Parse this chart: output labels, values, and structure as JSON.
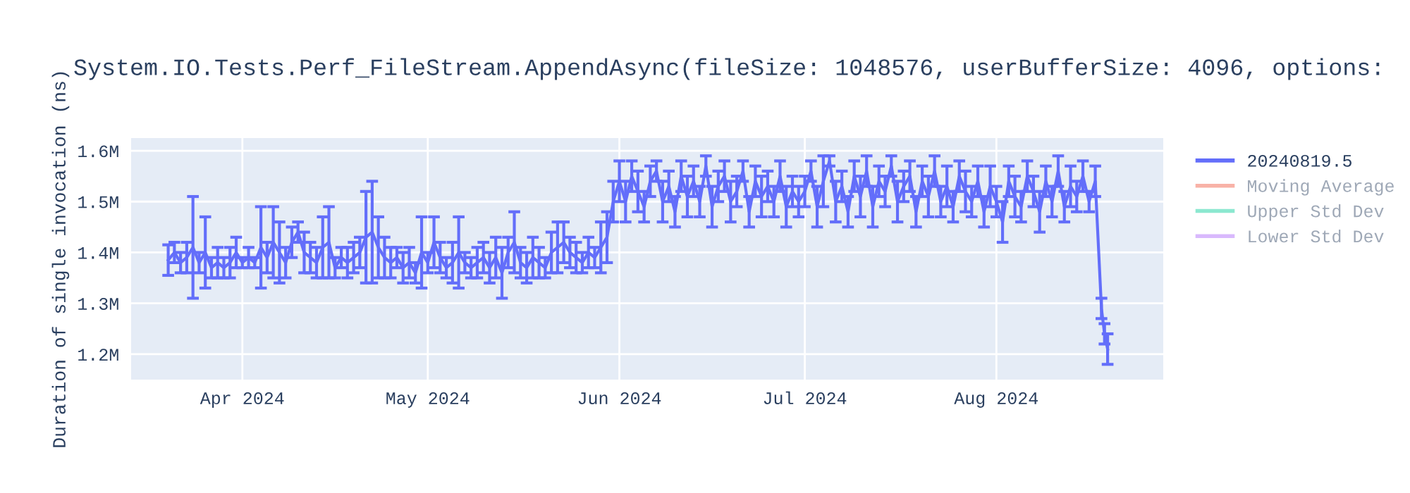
{
  "chart_data": {
    "type": "line",
    "title": "System.IO.Tests.Perf_FileStream.AppendAsync(fileSize: 1048576, userBufferSize: 4096, options:",
    "ylabel": "Duration of single invocation (ns)",
    "xlim": [
      "2024-03-14",
      "2024-08-28"
    ],
    "xticks": [
      {
        "value": "2024-04-01",
        "label": "Apr 2024"
      },
      {
        "value": "2024-05-01",
        "label": "May 2024"
      },
      {
        "value": "2024-06-01",
        "label": "Jun 2024"
      },
      {
        "value": "2024-07-01",
        "label": "Jul 2024"
      },
      {
        "value": "2024-08-01",
        "label": "Aug 2024"
      }
    ],
    "ylim": [
      1150000,
      1625000
    ],
    "yticks": [
      {
        "value": 1200000,
        "label": "1.2M"
      },
      {
        "value": 1300000,
        "label": "1.3M"
      },
      {
        "value": 1400000,
        "label": "1.4M"
      },
      {
        "value": 1500000,
        "label": "1.5M"
      },
      {
        "value": 1600000,
        "label": "1.6M"
      }
    ],
    "grid": true,
    "legend": "top right",
    "marker": "none",
    "line_style": "solid",
    "series": [
      {
        "name": "20240819.5",
        "color": "#636efa",
        "x": [
          "2024-03-20",
          "2024-03-21",
          "2024-03-22",
          "2024-03-23",
          "2024-03-24",
          "2024-03-25",
          "2024-03-26",
          "2024-03-27",
          "2024-03-28",
          "2024-03-29",
          "2024-03-30",
          "2024-03-31",
          "2024-04-01",
          "2024-04-02",
          "2024-04-03",
          "2024-04-04",
          "2024-04-05",
          "2024-04-06",
          "2024-04-07",
          "2024-04-08",
          "2024-04-09",
          "2024-04-10",
          "2024-04-11",
          "2024-04-12",
          "2024-04-13",
          "2024-04-14",
          "2024-04-15",
          "2024-04-16",
          "2024-04-17",
          "2024-04-18",
          "2024-04-19",
          "2024-04-20",
          "2024-04-21",
          "2024-04-22",
          "2024-04-23",
          "2024-04-24",
          "2024-04-25",
          "2024-04-26",
          "2024-04-27",
          "2024-04-28",
          "2024-04-29",
          "2024-04-30",
          "2024-05-01",
          "2024-05-02",
          "2024-05-03",
          "2024-05-04",
          "2024-05-05",
          "2024-05-06",
          "2024-05-07",
          "2024-05-08",
          "2024-05-09",
          "2024-05-10",
          "2024-05-11",
          "2024-05-12",
          "2024-05-13",
          "2024-05-14",
          "2024-05-15",
          "2024-05-16",
          "2024-05-17",
          "2024-05-18",
          "2024-05-19",
          "2024-05-20",
          "2024-05-21",
          "2024-05-22",
          "2024-05-23",
          "2024-05-24",
          "2024-05-25",
          "2024-05-26",
          "2024-05-27",
          "2024-05-28",
          "2024-05-29",
          "2024-05-30",
          "2024-05-31",
          "2024-06-01",
          "2024-06-02",
          "2024-06-03",
          "2024-06-04",
          "2024-06-05",
          "2024-06-06",
          "2024-06-07",
          "2024-06-08",
          "2024-06-09",
          "2024-06-10",
          "2024-06-11",
          "2024-06-12",
          "2024-06-13",
          "2024-06-14",
          "2024-06-15",
          "2024-06-16",
          "2024-06-17",
          "2024-06-18",
          "2024-06-19",
          "2024-06-20",
          "2024-06-21",
          "2024-06-22",
          "2024-06-23",
          "2024-06-24",
          "2024-06-25",
          "2024-06-26",
          "2024-06-27",
          "2024-06-28",
          "2024-06-29",
          "2024-06-30",
          "2024-07-01",
          "2024-07-02",
          "2024-07-03",
          "2024-07-04",
          "2024-07-05",
          "2024-07-06",
          "2024-07-07",
          "2024-07-08",
          "2024-07-09",
          "2024-07-10",
          "2024-07-11",
          "2024-07-12",
          "2024-07-13",
          "2024-07-14",
          "2024-07-15",
          "2024-07-16",
          "2024-07-17",
          "2024-07-18",
          "2024-07-19",
          "2024-07-20",
          "2024-07-21",
          "2024-07-22",
          "2024-07-23",
          "2024-07-24",
          "2024-07-25",
          "2024-07-26",
          "2024-07-27",
          "2024-07-28",
          "2024-07-29",
          "2024-07-30",
          "2024-07-31",
          "2024-08-01",
          "2024-08-02",
          "2024-08-03",
          "2024-08-04",
          "2024-08-05",
          "2024-08-06",
          "2024-08-07",
          "2024-08-08",
          "2024-08-09",
          "2024-08-10",
          "2024-08-11",
          "2024-08-12",
          "2024-08-13",
          "2024-08-14",
          "2024-08-15",
          "2024-08-16",
          "2024-08-17",
          "2024-08-18",
          "2024-08-18T12:00",
          "2024-08-19"
        ],
        "values": [
          1385000,
          1400000,
          1380000,
          1390000,
          1410000,
          1380000,
          1400000,
          1370000,
          1380000,
          1370000,
          1380000,
          1400000,
          1380000,
          1390000,
          1380000,
          1410000,
          1390000,
          1420000,
          1400000,
          1380000,
          1420000,
          1440000,
          1400000,
          1390000,
          1380000,
          1410000,
          1420000,
          1370000,
          1390000,
          1380000,
          1390000,
          1400000,
          1430000,
          1440000,
          1410000,
          1390000,
          1380000,
          1390000,
          1370000,
          1380000,
          1360000,
          1400000,
          1380000,
          1420000,
          1390000,
          1370000,
          1380000,
          1400000,
          1380000,
          1370000,
          1380000,
          1390000,
          1370000,
          1390000,
          1360000,
          1400000,
          1420000,
          1380000,
          1370000,
          1390000,
          1380000,
          1370000,
          1400000,
          1410000,
          1420000,
          1400000,
          1390000,
          1380000,
          1400000,
          1390000,
          1410000,
          1430000,
          1500000,
          1540000,
          1500000,
          1550000,
          1520000,
          1490000,
          1540000,
          1560000,
          1500000,
          1530000,
          1480000,
          1550000,
          1510000,
          1540000,
          1500000,
          1570000,
          1490000,
          1530000,
          1550000,
          1500000,
          1520000,
          1560000,
          1480000,
          1540000,
          1510000,
          1530000,
          1500000,
          1550000,
          1490000,
          1520000,
          1500000,
          1520000,
          1560000,
          1490000,
          1540000,
          1580000,
          1500000,
          1530000,
          1480000,
          1550000,
          1510000,
          1560000,
          1490000,
          1540000,
          1520000,
          1570000,
          1500000,
          1530000,
          1550000,
          1480000,
          1540000,
          1510000,
          1560000,
          1500000,
          1530000,
          1490000,
          1550000,
          1520000,
          1500000,
          1540000,
          1480000,
          1530000,
          1500000,
          1460000,
          1540000,
          1510000,
          1490000,
          1550000,
          1520000,
          1480000,
          1540000,
          1500000,
          1560000,
          1490000,
          1530000,
          1510000,
          1550000,
          1500000,
          1540000,
          1290000,
          1240000,
          1210000
        ],
        "errors": [
          30000,
          20000,
          20000,
          30000,
          100000,
          20000,
          70000,
          20000,
          30000,
          20000,
          30000,
          30000,
          10000,
          20000,
          10000,
          80000,
          30000,
          70000,
          60000,
          30000,
          30000,
          20000,
          40000,
          30000,
          30000,
          60000,
          70000,
          20000,
          20000,
          30000,
          30000,
          30000,
          90000,
          100000,
          60000,
          40000,
          30000,
          20000,
          30000,
          30000,
          20000,
          70000,
          20000,
          50000,
          30000,
          20000,
          40000,
          70000,
          20000,
          20000,
          30000,
          30000,
          30000,
          40000,
          50000,
          30000,
          60000,
          30000,
          30000,
          40000,
          30000,
          20000,
          40000,
          50000,
          40000,
          30000,
          30000,
          20000,
          30000,
          20000,
          50000,
          50000,
          40000,
          40000,
          40000,
          30000,
          40000,
          30000,
          30000,
          20000,
          40000,
          30000,
          30000,
          30000,
          40000,
          30000,
          30000,
          20000,
          40000,
          30000,
          30000,
          40000,
          30000,
          20000,
          30000,
          30000,
          40000,
          30000,
          30000,
          30000,
          40000,
          30000,
          30000,
          30000,
          20000,
          40000,
          50000,
          10000,
          40000,
          30000,
          30000,
          30000,
          40000,
          30000,
          40000,
          30000,
          30000,
          20000,
          40000,
          30000,
          30000,
          30000,
          30000,
          40000,
          30000,
          30000,
          40000,
          30000,
          30000,
          40000,
          30000,
          30000,
          30000,
          40000,
          30000,
          40000,
          30000,
          40000,
          30000,
          30000,
          30000,
          40000,
          30000,
          30000,
          30000,
          30000,
          40000,
          30000,
          30000,
          20000,
          30000,
          20000,
          20000,
          30000
        ]
      },
      {
        "name": "Moving Average",
        "color": "#ef553b"
      },
      {
        "name": "Upper Std Dev",
        "color": "#00cc96"
      },
      {
        "name": "Lower Std Dev",
        "color": "#ab63fa"
      }
    ]
  }
}
